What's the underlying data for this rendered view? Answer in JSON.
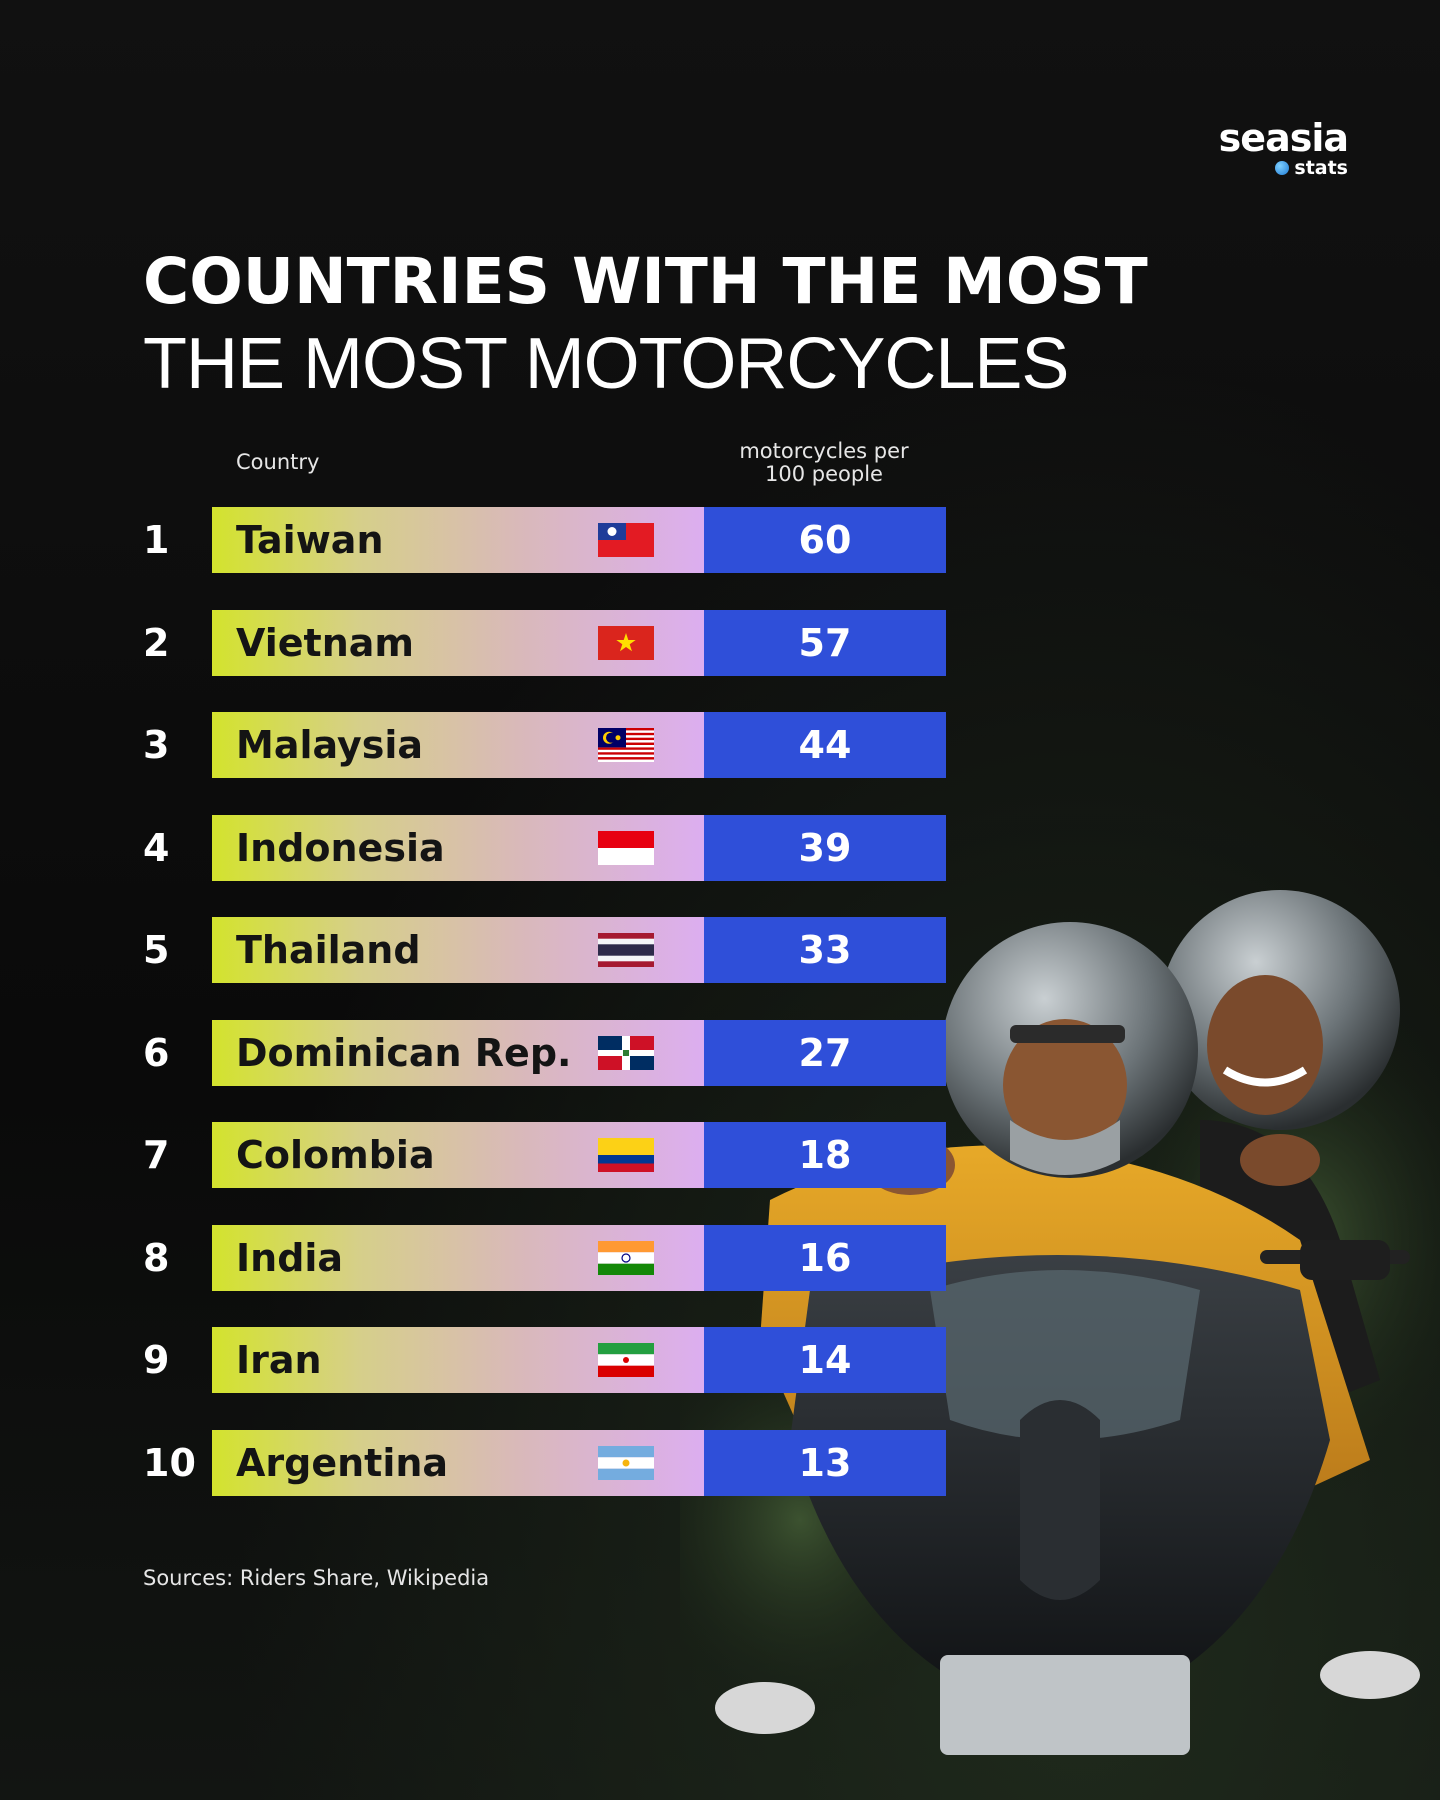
{
  "brand": {
    "name": "seasia",
    "sub": "stats"
  },
  "title": {
    "line1": "COUNTRIES WITH THE MOST",
    "line2": "THE MOST MOTORCYCLES"
  },
  "columns": {
    "country": "Country",
    "value_line1": "motorcycles per",
    "value_line2": "100 people"
  },
  "source": "Sources: Riders Share, Wikipedia",
  "colors": {
    "value_bar": "#2f4fd9",
    "bar_start": "#d3e32d",
    "bar_end": "#dcaef0",
    "background": "#0b0b0b"
  },
  "chart_data": {
    "type": "table",
    "columns": [
      "Country",
      "motorcycles per 100 people"
    ],
    "rows": [
      {
        "rank": "1",
        "country": "Taiwan",
        "value": 60,
        "flag": "taiwan-flag-icon"
      },
      {
        "rank": "2",
        "country": "Vietnam",
        "value": 57,
        "flag": "vietnam-flag-icon"
      },
      {
        "rank": "3",
        "country": "Malaysia",
        "value": 44,
        "flag": "malaysia-flag-icon"
      },
      {
        "rank": "4",
        "country": "Indonesia",
        "value": 39,
        "flag": "indonesia-flag-icon"
      },
      {
        "rank": "5",
        "country": "Thailand",
        "value": 33,
        "flag": "thailand-flag-icon"
      },
      {
        "rank": "6",
        "country": "Dominican Rep.",
        "value": 27,
        "flag": "dominican-republic-flag-icon"
      },
      {
        "rank": "7",
        "country": "Colombia",
        "value": 18,
        "flag": "colombia-flag-icon"
      },
      {
        "rank": "8",
        "country": "India",
        "value": 16,
        "flag": "india-flag-icon"
      },
      {
        "rank": "9",
        "country": "Iran",
        "value": 14,
        "flag": "iran-flag-icon"
      },
      {
        "rank": "10",
        "country": "Argentina",
        "value": 13,
        "flag": "argentina-flag-icon"
      }
    ]
  }
}
